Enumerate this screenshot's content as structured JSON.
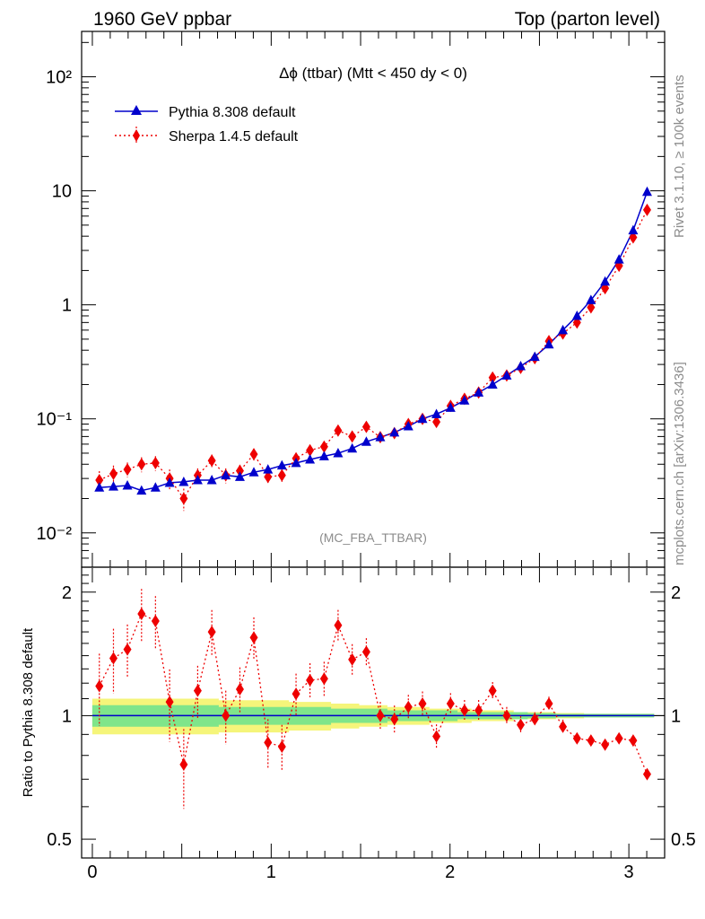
{
  "header": {
    "left": "1960 GeV ppbar",
    "right": "Top (parton level)"
  },
  "side_labels": {
    "rivet": "Rivet 3.1.10, ≥ 100k events",
    "mcplots": "mcplots.cern.ch [arXiv:1306.3436]"
  },
  "main_panel": {
    "title": "Δϕ (ttbar) (Mtt < 450 dy < 0)",
    "watermark": "(MC_FBA_TTBAR)",
    "y_ticks": [
      {
        "value": 0.01,
        "label": "10⁻²"
      },
      {
        "value": 0.1,
        "label": "10⁻¹"
      },
      {
        "value": 1,
        "label": "1"
      },
      {
        "value": 10,
        "label": "10"
      },
      {
        "value": 100,
        "label": "10²"
      }
    ]
  },
  "ratio_panel": {
    "ylabel": "Ratio to Pythia 8.308 default",
    "y_ticks": [
      {
        "value": 0.5,
        "label": "0.5"
      },
      {
        "value": 1,
        "label": "1"
      },
      {
        "value": 2,
        "label": "2"
      }
    ]
  },
  "x_ticks": [
    {
      "value": 0,
      "label": "0"
    },
    {
      "value": 1,
      "label": "1"
    },
    {
      "value": 2,
      "label": "2"
    },
    {
      "value": 3,
      "label": "3"
    }
  ],
  "legend": [
    {
      "name": "Pythia 8.308 default",
      "color": "#0000cc",
      "marker": "triangle",
      "line": "solid"
    },
    {
      "name": "Sherpa 1.4.5 default",
      "color": "#ee0000",
      "marker": "diamond",
      "line": "dotted"
    }
  ],
  "chart_data": {
    "type": "line",
    "title": "Δϕ (ttbar) (Mtt < 450 dy < 0)",
    "xlim": [
      -0.06,
      3.2
    ],
    "ylim": [
      0.005,
      250
    ],
    "yscale": "log",
    "ratio_ylim": [
      0.45,
      2.3
    ],
    "legend_position": "top-left",
    "x": [
      0.039,
      0.118,
      0.196,
      0.275,
      0.353,
      0.432,
      0.511,
      0.589,
      0.668,
      0.746,
      0.825,
      0.903,
      0.982,
      1.06,
      1.139,
      1.217,
      1.296,
      1.374,
      1.453,
      1.532,
      1.61,
      1.689,
      1.767,
      1.846,
      1.924,
      2.003,
      2.081,
      2.16,
      2.238,
      2.317,
      2.395,
      2.474,
      2.553,
      2.631,
      2.71,
      2.788,
      2.867,
      2.945,
      3.024,
      3.102
    ],
    "series": [
      {
        "name": "Pythia 8.308 default",
        "values": [
          0.025,
          0.0255,
          0.026,
          0.0235,
          0.025,
          0.0275,
          0.028,
          0.029,
          0.029,
          0.032,
          0.031,
          0.034,
          0.036,
          0.039,
          0.041,
          0.044,
          0.047,
          0.05,
          0.055,
          0.063,
          0.069,
          0.076,
          0.086,
          0.1,
          0.11,
          0.125,
          0.145,
          0.17,
          0.2,
          0.24,
          0.29,
          0.35,
          0.45,
          0.6,
          0.8,
          1.1,
          1.6,
          2.5,
          4.5,
          9.8
        ]
      },
      {
        "name": "Sherpa 1.4.5 default",
        "values": [
          0.029,
          0.033,
          0.036,
          0.04,
          0.041,
          0.03,
          0.02,
          0.032,
          0.043,
          0.032,
          0.035,
          0.049,
          0.031,
          0.032,
          0.045,
          0.053,
          0.057,
          0.079,
          0.07,
          0.085,
          0.069,
          0.075,
          0.09,
          0.1,
          0.094,
          0.13,
          0.15,
          0.17,
          0.23,
          0.24,
          0.28,
          0.34,
          0.48,
          0.56,
          0.7,
          0.95,
          1.4,
          2.2,
          3.9,
          6.8
        ],
        "errors_rel": [
          0.2,
          0.18,
          0.15,
          0.15,
          0.15,
          0.2,
          0.22,
          0.15,
          0.13,
          0.15,
          0.13,
          0.12,
          0.14,
          0.13,
          0.12,
          0.1,
          0.1,
          0.09,
          0.09,
          0.08,
          0.08,
          0.08,
          0.07,
          0.07,
          0.07,
          0.06,
          0.06,
          0.06,
          0.05,
          0.05,
          0.05,
          0.04,
          0.04,
          0.04,
          0.03,
          0.03,
          0.03,
          0.02,
          0.02,
          0.02
        ]
      }
    ],
    "ratio": {
      "ylabel": "Ratio to Pythia 8.308 default",
      "values": [
        1.18,
        1.38,
        1.45,
        1.77,
        1.7,
        1.08,
        0.76,
        1.15,
        1.6,
        1.0,
        1.16,
        1.55,
        0.86,
        0.84,
        1.13,
        1.22,
        1.23,
        1.66,
        1.37,
        1.43,
        1.0,
        0.98,
        1.05,
        1.07,
        0.89,
        1.07,
        1.03,
        1.03,
        1.15,
        1.0,
        0.95,
        0.98,
        1.07,
        0.94,
        0.88,
        0.87,
        0.85,
        0.88,
        0.87,
        0.72
      ],
      "mc_band_green": [
        0.06,
        0.06,
        0.06,
        0.06,
        0.06,
        0.06,
        0.06,
        0.06,
        0.06,
        0.05,
        0.05,
        0.05,
        0.05,
        0.05,
        0.05,
        0.05,
        0.05,
        0.04,
        0.04,
        0.04,
        0.04,
        0.03,
        0.03,
        0.03,
        0.03,
        0.03,
        0.02,
        0.02,
        0.02,
        0.02,
        0.02,
        0.015,
        0.015,
        0.01,
        0.01,
        0.01,
        0.01,
        0.01,
        0.01,
        0.01
      ],
      "mc_band_yellow": [
        0.1,
        0.1,
        0.1,
        0.1,
        0.1,
        0.1,
        0.1,
        0.1,
        0.1,
        0.09,
        0.09,
        0.09,
        0.09,
        0.09,
        0.08,
        0.08,
        0.08,
        0.07,
        0.07,
        0.06,
        0.06,
        0.05,
        0.05,
        0.05,
        0.04,
        0.04,
        0.04,
        0.03,
        0.03,
        0.03,
        0.02,
        0.02,
        0.02,
        0.015,
        0.015,
        0.01,
        0.01,
        0.01,
        0.01,
        0.01
      ]
    }
  }
}
